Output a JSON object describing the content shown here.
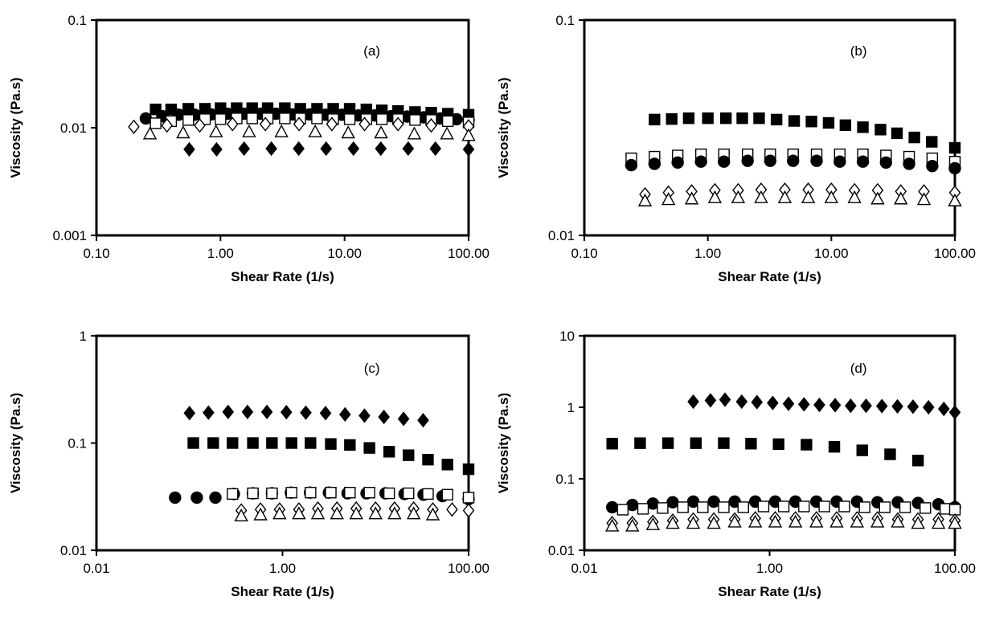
{
  "chart_data": [
    {
      "type": "scatter",
      "panel_label": "(a)",
      "xlabel": "Shear Rate (1/s)",
      "ylabel": "Viscosity (Pa.s)",
      "xscale": "log",
      "yscale": "log",
      "xlim": [
        0.1,
        100
      ],
      "ylim": [
        0.001,
        0.1
      ],
      "xticks": [
        0.1,
        1,
        10,
        100
      ],
      "xtick_labels": [
        "0.10",
        "1.00",
        "10.00",
        "100.00"
      ],
      "yticks": [
        0.001,
        0.01,
        0.1
      ],
      "ytick_labels": [
        "0.001",
        "0.01",
        "0.1"
      ],
      "grid": false,
      "series": [
        {
          "marker": "filled-square",
          "x": [
            0.3,
            0.4,
            0.55,
            0.75,
            1.0,
            1.35,
            1.8,
            2.4,
            3.3,
            4.4,
            6.0,
            8.1,
            11,
            15,
            20,
            27,
            37,
            50,
            68,
            100
          ],
          "y": [
            0.0148,
            0.0148,
            0.015,
            0.015,
            0.0152,
            0.0152,
            0.0152,
            0.0152,
            0.0152,
            0.015,
            0.015,
            0.015,
            0.015,
            0.0148,
            0.0145,
            0.0143,
            0.014,
            0.0138,
            0.0135,
            0.0132
          ]
        },
        {
          "marker": "filled-circle",
          "x": [
            0.25,
            0.34,
            0.46,
            0.62,
            0.84,
            1.14,
            1.55,
            2.1,
            2.8,
            3.8,
            5.2,
            7.0,
            9.5,
            12.9,
            17.5,
            23.7,
            32,
            43.5,
            59,
            80,
            100
          ],
          "y": [
            0.0122,
            0.0128,
            0.0132,
            0.0132,
            0.0133,
            0.0135,
            0.0135,
            0.0135,
            0.0135,
            0.0133,
            0.0133,
            0.0132,
            0.0132,
            0.013,
            0.013,
            0.0128,
            0.0127,
            0.0125,
            0.0122,
            0.012,
            0.0118
          ]
        },
        {
          "marker": "open-square",
          "x": [
            0.3,
            0.4,
            0.55,
            0.75,
            1.0,
            1.35,
            1.8,
            2.4,
            3.3,
            4.4,
            6.0,
            8.1,
            11,
            15,
            20,
            27,
            37,
            50,
            68,
            100
          ],
          "y": [
            0.011,
            0.0115,
            0.0118,
            0.012,
            0.012,
            0.0122,
            0.0122,
            0.0122,
            0.0122,
            0.0122,
            0.0122,
            0.012,
            0.012,
            0.012,
            0.012,
            0.012,
            0.0118,
            0.0118,
            0.0115,
            0.0112
          ]
        },
        {
          "marker": "open-diamond",
          "x": [
            0.2,
            0.37,
            0.68,
            1.25,
            2.3,
            4.3,
            7.9,
            14.5,
            27,
            50,
            100
          ],
          "y": [
            0.0102,
            0.0105,
            0.0105,
            0.0108,
            0.0108,
            0.0108,
            0.0108,
            0.0108,
            0.0108,
            0.0105,
            0.0103
          ]
        },
        {
          "marker": "open-triangle",
          "x": [
            0.27,
            0.5,
            0.92,
            1.7,
            3.1,
            5.8,
            10.7,
            19.7,
            36.5,
            67,
            100
          ],
          "y": [
            0.0088,
            0.009,
            0.0092,
            0.0092,
            0.0092,
            0.0092,
            0.009,
            0.009,
            0.0088,
            0.0088,
            0.0085
          ]
        },
        {
          "marker": "filled-diamond",
          "x": [
            0.56,
            0.93,
            1.55,
            2.57,
            4.27,
            7.1,
            11.8,
            19.6,
            32.6,
            54,
            100
          ],
          "y": [
            0.0063,
            0.0063,
            0.0064,
            0.0064,
            0.0064,
            0.0064,
            0.0064,
            0.0064,
            0.0064,
            0.0064,
            0.0063
          ]
        }
      ]
    },
    {
      "type": "scatter",
      "panel_label": "(b)",
      "xlabel": "Shear Rate (1/s)",
      "ylabel": "Viscosity (Pa.s)",
      "xscale": "log",
      "yscale": "log",
      "xlim": [
        0.1,
        100
      ],
      "ylim": [
        0.01,
        0.1
      ],
      "xticks": [
        0.1,
        1,
        10,
        100
      ],
      "xtick_labels": [
        "0.10",
        "1.00",
        "10.00",
        "100.00"
      ],
      "yticks": [
        0.01,
        0.1
      ],
      "ytick_labels": [
        "0.01",
        "0.1"
      ],
      "grid": false,
      "series": [
        {
          "marker": "filled-square",
          "x": [
            0.37,
            0.51,
            0.7,
            1.0,
            1.4,
            1.9,
            2.6,
            3.6,
            5.0,
            6.9,
            9.5,
            13,
            18,
            25,
            34,
            47,
            65,
            100
          ],
          "y": [
            0.0345,
            0.0347,
            0.035,
            0.035,
            0.035,
            0.035,
            0.035,
            0.0345,
            0.034,
            0.0338,
            0.0333,
            0.0325,
            0.0318,
            0.031,
            0.0298,
            0.0285,
            0.0272,
            0.0255
          ]
        },
        {
          "marker": "open-square",
          "x": [
            0.24,
            0.37,
            0.57,
            0.88,
            1.35,
            2.1,
            3.2,
            4.9,
            7.6,
            11.7,
            18,
            27.7,
            42.6,
            65.6,
            100
          ],
          "y": [
            0.0228,
            0.0232,
            0.0235,
            0.0238,
            0.0238,
            0.0238,
            0.0238,
            0.0238,
            0.0238,
            0.0238,
            0.0238,
            0.0235,
            0.0232,
            0.0228,
            0.022
          ]
        },
        {
          "marker": "filled-circle",
          "x": [
            0.24,
            0.37,
            0.57,
            0.88,
            1.35,
            2.1,
            3.2,
            4.9,
            7.6,
            11.7,
            18,
            27.7,
            42.6,
            65.6,
            100
          ],
          "y": [
            0.0212,
            0.0215,
            0.0218,
            0.022,
            0.022,
            0.0222,
            0.0222,
            0.0222,
            0.0222,
            0.022,
            0.022,
            0.0218,
            0.0215,
            0.021,
            0.0205
          ]
        },
        {
          "marker": "open-diamond",
          "x": [
            0.31,
            0.48,
            0.74,
            1.14,
            1.76,
            2.7,
            4.2,
            6.5,
            10,
            15.4,
            23.7,
            36.5,
            56.2,
            100
          ],
          "y": [
            0.0155,
            0.0158,
            0.016,
            0.0162,
            0.0162,
            0.0163,
            0.0163,
            0.0163,
            0.0163,
            0.0162,
            0.0162,
            0.016,
            0.016,
            0.0158
          ]
        },
        {
          "marker": "open-triangle",
          "x": [
            0.31,
            0.48,
            0.74,
            1.14,
            1.76,
            2.7,
            4.2,
            6.5,
            10,
            15.4,
            23.7,
            36.5,
            56.2,
            100
          ],
          "y": [
            0.0145,
            0.0147,
            0.0148,
            0.015,
            0.015,
            0.015,
            0.015,
            0.015,
            0.015,
            0.015,
            0.0148,
            0.0148,
            0.0147,
            0.0145
          ]
        }
      ]
    },
    {
      "type": "scatter",
      "panel_label": "(c)",
      "xlabel": "Shear Rate (1/s)",
      "ylabel": "Viscosity (Pa.s)",
      "xscale": "log",
      "yscale": "log",
      "xlim": [
        0.01,
        100
      ],
      "ylim": [
        0.01,
        1
      ],
      "xticks": [
        0.01,
        1,
        100
      ],
      "xtick_labels": [
        "0.01",
        "1.00",
        "100.00"
      ],
      "yticks": [
        0.01,
        0.1,
        1
      ],
      "ytick_labels": [
        "0.01",
        "0.1",
        "1"
      ],
      "grid": false,
      "series": [
        {
          "marker": "filled-diamond",
          "x": [
            0.1,
            0.16,
            0.26,
            0.42,
            0.68,
            1.1,
            1.78,
            2.9,
            4.7,
            7.6,
            12.3,
            20,
            32.5
          ],
          "y": [
            0.19,
            0.192,
            0.195,
            0.195,
            0.195,
            0.194,
            0.192,
            0.19,
            0.185,
            0.18,
            0.175,
            0.168,
            0.163
          ]
        },
        {
          "marker": "filled-square",
          "x": [
            0.11,
            0.18,
            0.29,
            0.48,
            0.77,
            1.25,
            2.0,
            3.3,
            5.3,
            8.6,
            14,
            22.6,
            36.6,
            59.3,
            100
          ],
          "y": [
            0.1,
            0.1,
            0.1,
            0.1,
            0.1,
            0.1,
            0.1,
            0.098,
            0.096,
            0.09,
            0.083,
            0.077,
            0.07,
            0.063,
            0.057
          ]
        },
        {
          "marker": "filled-circle",
          "x": [
            0.07,
            0.12,
            0.19,
            0.3,
            0.48,
            0.77,
            1.23,
            1.97,
            3.15,
            5.0,
            8.0,
            12.8,
            20.5,
            32.8,
            52.5,
            100
          ],
          "y": [
            0.031,
            0.031,
            0.031,
            0.0335,
            0.034,
            0.034,
            0.0345,
            0.0345,
            0.0345,
            0.034,
            0.034,
            0.034,
            0.0335,
            0.033,
            0.032,
            0.03
          ]
        },
        {
          "marker": "open-square",
          "x": [
            0.29,
            0.48,
            0.77,
            1.25,
            2.0,
            3.3,
            5.3,
            8.6,
            14,
            22.6,
            36.6,
            59.3,
            100
          ],
          "y": [
            0.0335,
            0.034,
            0.034,
            0.0345,
            0.0345,
            0.0345,
            0.0345,
            0.0345,
            0.034,
            0.034,
            0.0335,
            0.033,
            0.031
          ]
        },
        {
          "marker": "open-diamond",
          "x": [
            0.36,
            0.58,
            0.93,
            1.5,
            2.4,
            3.85,
            6.2,
            10,
            16,
            25.7,
            41.3,
            66.5,
            100
          ],
          "y": [
            0.0235,
            0.024,
            0.024,
            0.024,
            0.0245,
            0.0245,
            0.0245,
            0.0245,
            0.0245,
            0.0245,
            0.024,
            0.024,
            0.0235
          ]
        },
        {
          "marker": "open-triangle",
          "x": [
            0.36,
            0.58,
            0.93,
            1.5,
            2.4,
            3.85,
            6.2,
            10,
            16,
            25.7,
            41.3
          ],
          "y": [
            0.021,
            0.0215,
            0.022,
            0.022,
            0.022,
            0.022,
            0.022,
            0.022,
            0.022,
            0.022,
            0.0215
          ]
        }
      ]
    },
    {
      "type": "scatter",
      "panel_label": "(d)",
      "xlabel": "Shear Rate (1/s)",
      "ylabel": "Viscosity (Pa.s)",
      "xscale": "log",
      "yscale": "log",
      "xlim": [
        0.01,
        100
      ],
      "ylim": [
        0.01,
        10
      ],
      "xticks": [
        0.01,
        1,
        100
      ],
      "xtick_labels": [
        "0.01",
        "1.00",
        "100.00"
      ],
      "yticks": [
        0.01,
        0.1,
        1,
        10
      ],
      "ytick_labels": [
        "0.01",
        "0.1",
        "1",
        "10"
      ],
      "grid": false,
      "series": [
        {
          "marker": "filled-diamond",
          "x": [
            0.15,
            0.23,
            0.33,
            0.5,
            0.73,
            1.08,
            1.6,
            2.35,
            3.45,
            5.1,
            7.5,
            11,
            16.3,
            24,
            35.3,
            52,
            76,
            100
          ],
          "y": [
            1.2,
            1.25,
            1.28,
            1.2,
            1.18,
            1.15,
            1.12,
            1.1,
            1.08,
            1.07,
            1.05,
            1.05,
            1.04,
            1.03,
            1.02,
            1.0,
            0.95,
            0.85
          ]
        },
        {
          "marker": "filled-square",
          "x": [
            0.02,
            0.04,
            0.08,
            0.16,
            0.32,
            0.63,
            1.25,
            2.5,
            5.0,
            10,
            20,
            40
          ],
          "y": [
            0.31,
            0.315,
            0.315,
            0.315,
            0.315,
            0.31,
            0.305,
            0.3,
            0.28,
            0.25,
            0.22,
            0.18
          ]
        },
        {
          "marker": "filled-circle",
          "x": [
            0.02,
            0.033,
            0.055,
            0.09,
            0.15,
            0.25,
            0.42,
            0.7,
            1.15,
            1.9,
            3.2,
            5.3,
            8.8,
            14.6,
            24.2,
            40,
            66.5,
            100
          ],
          "y": [
            0.04,
            0.043,
            0.045,
            0.047,
            0.048,
            0.048,
            0.048,
            0.048,
            0.048,
            0.048,
            0.048,
            0.048,
            0.048,
            0.047,
            0.047,
            0.046,
            0.044,
            0.04
          ]
        },
        {
          "marker": "open-square",
          "x": [
            0.026,
            0.043,
            0.07,
            0.116,
            0.19,
            0.32,
            0.52,
            0.86,
            1.42,
            2.35,
            3.9,
            6.4,
            10.6,
            17.5,
            29,
            48,
            79,
            100
          ],
          "y": [
            0.037,
            0.038,
            0.039,
            0.04,
            0.04,
            0.04,
            0.04,
            0.041,
            0.041,
            0.041,
            0.041,
            0.041,
            0.04,
            0.04,
            0.04,
            0.039,
            0.038,
            0.037
          ]
        },
        {
          "marker": "open-diamond",
          "x": [
            0.02,
            0.033,
            0.055,
            0.09,
            0.15,
            0.25,
            0.42,
            0.7,
            1.15,
            1.9,
            3.2,
            5.3,
            8.8,
            14.6,
            24.2,
            40,
            66.5,
            100
          ],
          "y": [
            0.024,
            0.024,
            0.025,
            0.026,
            0.027,
            0.027,
            0.027,
            0.028,
            0.028,
            0.028,
            0.028,
            0.028,
            0.028,
            0.028,
            0.027,
            0.027,
            0.027,
            0.026
          ]
        },
        {
          "marker": "open-triangle",
          "x": [
            0.02,
            0.033,
            0.055,
            0.09,
            0.15,
            0.25,
            0.42,
            0.7,
            1.15,
            1.9,
            3.2,
            5.3,
            8.8,
            14.6,
            24.2,
            40,
            66.5,
            100
          ],
          "y": [
            0.022,
            0.022,
            0.023,
            0.024,
            0.024,
            0.024,
            0.025,
            0.025,
            0.025,
            0.025,
            0.025,
            0.025,
            0.025,
            0.025,
            0.025,
            0.024,
            0.024,
            0.024
          ]
        }
      ]
    }
  ]
}
